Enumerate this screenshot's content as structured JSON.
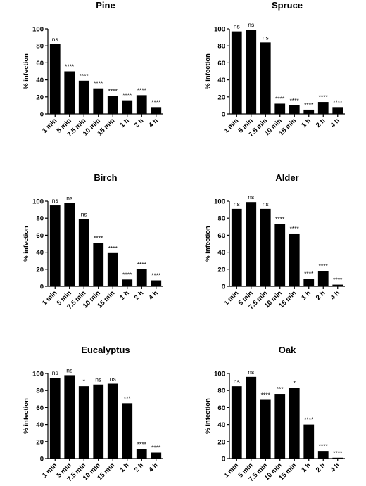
{
  "chart_data": [
    {
      "type": "bar",
      "title": "Pine",
      "ylabel": "% infection",
      "categories": [
        "1 min",
        "5 min",
        "7.5 min",
        "10 min",
        "15 min",
        "1 h",
        "2 h",
        "4 h"
      ],
      "values": [
        82,
        50,
        39,
        30,
        21,
        16,
        22,
        8
      ],
      "annotations": [
        "ns",
        "****",
        "****",
        "****",
        "****",
        "****",
        "****",
        "****"
      ],
      "color": "#000000",
      "ylim": [
        0,
        100
      ],
      "yticks": [
        0,
        20,
        40,
        60,
        80,
        100
      ]
    },
    {
      "type": "bar",
      "title": "Spruce",
      "ylabel": "% infection",
      "categories": [
        "1 min",
        "5 min",
        "7.5 min",
        "10 min",
        "15 min",
        "1 h",
        "2 h",
        "4 h"
      ],
      "values": [
        97,
        99,
        84,
        12,
        10,
        5,
        14,
        8
      ],
      "annotations": [
        "ns",
        "ns",
        "ns",
        "****",
        "****",
        "****",
        "****",
        "****"
      ],
      "color": "#000000",
      "ylim": [
        0,
        100
      ],
      "yticks": [
        0,
        20,
        40,
        60,
        80,
        100
      ]
    },
    {
      "type": "bar",
      "title": "Birch",
      "ylabel": "% infection",
      "categories": [
        "1 min",
        "5 min",
        "7.5 min",
        "10 min",
        "15 min",
        "1 h",
        "2 h",
        "4 h"
      ],
      "values": [
        95,
        98,
        79,
        51,
        39,
        8,
        20,
        7
      ],
      "annotations": [
        "ns",
        "ns",
        "ns",
        "****",
        "****",
        "****",
        "****",
        "****"
      ],
      "color": "#000000",
      "ylim": [
        0,
        100
      ],
      "yticks": [
        0,
        20,
        40,
        60,
        80,
        100
      ]
    },
    {
      "type": "bar",
      "title": "Alder",
      "ylabel": "% infection",
      "categories": [
        "1 min",
        "5 min",
        "7.5 min",
        "10 min",
        "15 min",
        "1 h",
        "2 h",
        "4 h"
      ],
      "values": [
        91,
        99,
        91,
        73,
        62,
        9,
        18,
        2
      ],
      "annotations": [
        "ns",
        "ns",
        "ns",
        "****",
        "****",
        "****",
        "****",
        "****"
      ],
      "color": "#000000",
      "ylim": [
        0,
        100
      ],
      "yticks": [
        0,
        20,
        40,
        60,
        80,
        100
      ]
    },
    {
      "type": "bar",
      "title": "Eucalyptus",
      "ylabel": "% infection",
      "categories": [
        "1 min",
        "5 min",
        "7.5 min",
        "10 min",
        "15 min",
        "1 h",
        "2 h",
        "4 h"
      ],
      "values": [
        95,
        98,
        85,
        87,
        88,
        65,
        11,
        7
      ],
      "annotations": [
        "ns",
        "ns",
        "*",
        "ns",
        "ns",
        "***",
        "****",
        "****"
      ],
      "color": "#000000",
      "ylim": [
        0,
        100
      ],
      "yticks": [
        0,
        20,
        40,
        60,
        80,
        100
      ]
    },
    {
      "type": "bar",
      "title": "Oak",
      "ylabel": "% infection",
      "categories": [
        "1 min",
        "5 min",
        "7.5 min",
        "10 min",
        "15 min",
        "1 h",
        "2 h",
        "4 h"
      ],
      "values": [
        85,
        96,
        69,
        76,
        83,
        40,
        9,
        1
      ],
      "annotations": [
        "ns",
        "ns",
        "****",
        "***",
        "*",
        "****",
        "****",
        "****"
      ],
      "color": "#000000",
      "ylim": [
        0,
        100
      ],
      "yticks": [
        0,
        20,
        40,
        60,
        80,
        100
      ]
    }
  ]
}
